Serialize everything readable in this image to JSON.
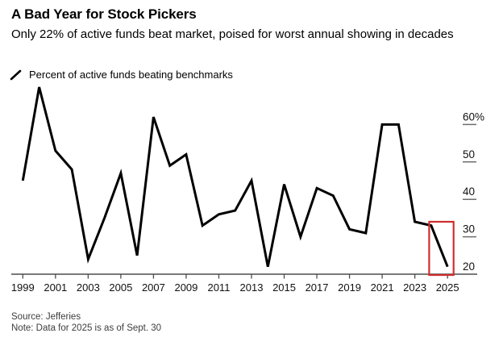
{
  "chart_data": {
    "type": "line",
    "title": "A Bad Year for Stock Pickers",
    "subtitle": "Only 22% of active funds beat market, poised for worst annual showing in decades",
    "series_name": "Percent of active funds beating benchmarks",
    "x": [
      1999,
      2000,
      2001,
      2002,
      2003,
      2004,
      2005,
      2006,
      2007,
      2008,
      2009,
      2010,
      2011,
      2012,
      2013,
      2014,
      2015,
      2016,
      2017,
      2018,
      2019,
      2020,
      2021,
      2022,
      2023,
      2024,
      2025
    ],
    "values": [
      45,
      70,
      53,
      48,
      24,
      35,
      47,
      25,
      62,
      49,
      52,
      33,
      36,
      37,
      45,
      22,
      44,
      30,
      43,
      41,
      32,
      31,
      60,
      60,
      34,
      33,
      22
    ],
    "x_ticks": [
      1999,
      2001,
      2003,
      2005,
      2007,
      2009,
      2011,
      2013,
      2015,
      2017,
      2019,
      2021,
      2023,
      2025
    ],
    "y_ticks": [
      20,
      30,
      40,
      50,
      60
    ],
    "y_tick_labels": [
      "20",
      "30",
      "40",
      "50",
      "60%"
    ],
    "xlim": [
      1999,
      2025
    ],
    "ylim": [
      20,
      72
    ],
    "grid": false,
    "legend_position": "top-left",
    "y_axis_side": "right",
    "line_color": "#000000",
    "axis_color": "#4d4d4d",
    "tick_label_color": "#111111",
    "highlight_box": {
      "from_year": 2024,
      "to_year": 2025,
      "color": "#cf2e2e"
    }
  },
  "footer": {
    "source": "Source: Jefferies",
    "note": "Note: Data for 2025 is as of Sept. 30"
  }
}
